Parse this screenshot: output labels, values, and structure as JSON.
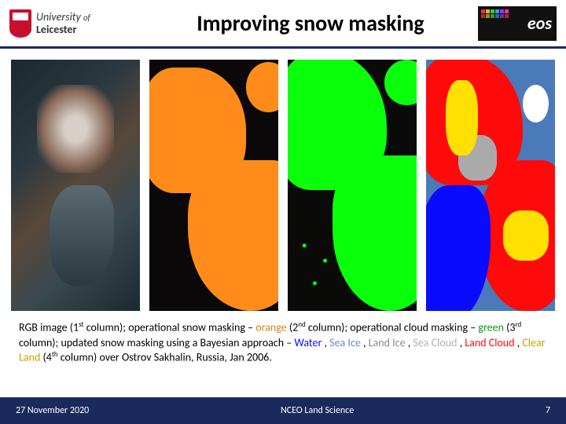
{
  "university": {
    "line1": "University",
    "of": "of",
    "line2": "Leicester"
  },
  "title": "Improving snow masking",
  "eos": "eos",
  "caption": {
    "p1a": "RGB image (1",
    "p1sup": "st",
    "p1b": " column); operational snow masking – ",
    "orange": "orange",
    "p2a": " (2",
    "p2sup": "nd",
    "p2b": " column); operational cloud masking – ",
    "green": "green",
    "p3a": " (3",
    "p3sup": "rd",
    "p3b": " column);  updated snow masking using a Bayesian approach – ",
    "water": "Water",
    "sep1": " , ",
    "seaice": "Sea Ice",
    "sep2": " , ",
    "landice": "Land Ice",
    "sep3": " , ",
    "seacloud": "Sea Cloud",
    "sep4": " , ",
    "landcloud": "Land Cloud",
    "sep5": " , ",
    "clearland": "Clear Land",
    "p4a": "  (4",
    "p4sup": "th",
    "p4b": " column) over Ostrov Sakhalin, Russia, Jan 2006."
  },
  "footer": {
    "date": "27 November 2020",
    "center": "NCEO Land Science",
    "page": "7"
  },
  "colors": {
    "orange": "#d9801a",
    "green": "#0a9a0a",
    "water": "#0a0aff",
    "seaice": "#6a8aba",
    "landice": "#888888",
    "seacloud": "#d0d0d0",
    "landcloud": "#ff0a0a",
    "clearland": "#d9b000"
  }
}
